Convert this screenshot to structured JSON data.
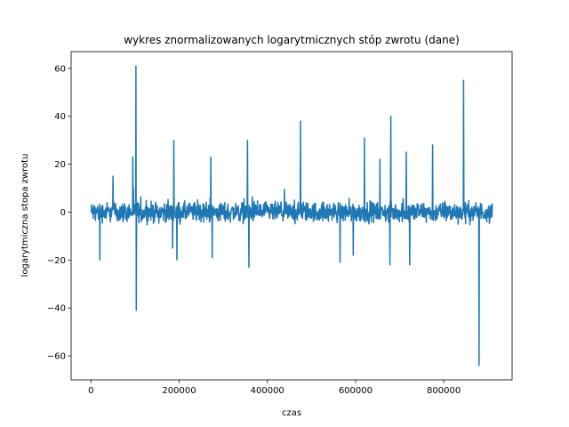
{
  "chart_data": {
    "type": "line",
    "title": "wykres znormalizowanych logarytmicznych stóp zwrotu (dane)",
    "xlabel": "czas",
    "ylabel": "logarytmiczna stopa zwrotu",
    "xlim": [
      -45000,
      955000
    ],
    "ylim": [
      -70,
      67
    ],
    "xticks": [
      0,
      200000,
      400000,
      600000,
      800000
    ],
    "xtick_labels": [
      "0",
      "200000",
      "400000",
      "600000",
      "800000"
    ],
    "yticks": [
      -60,
      -40,
      -20,
      0,
      20,
      40,
      60
    ],
    "ytick_labels": [
      "−60",
      "−40",
      "−20",
      "0",
      "20",
      "40",
      "60"
    ],
    "series": [
      {
        "name": "dane",
        "color": "#1f77b4",
        "x_range": [
          0,
          910000
        ],
        "band": {
          "x": [
            0,
            910000
          ],
          "low": -6,
          "high": 6
        },
        "spikes": [
          {
            "x": 20000,
            "value": -20
          },
          {
            "x": 50000,
            "value": 15
          },
          {
            "x": 95000,
            "value": 23
          },
          {
            "x": 102000,
            "value": 61
          },
          {
            "x": 103000,
            "value": -41
          },
          {
            "x": 185000,
            "value": -15
          },
          {
            "x": 188000,
            "value": 30
          },
          {
            "x": 195000,
            "value": -20
          },
          {
            "x": 272000,
            "value": 23
          },
          {
            "x": 275000,
            "value": -19
          },
          {
            "x": 355000,
            "value": 30
          },
          {
            "x": 358000,
            "value": -23
          },
          {
            "x": 475000,
            "value": 38
          },
          {
            "x": 565000,
            "value": -21
          },
          {
            "x": 595000,
            "value": -18
          },
          {
            "x": 620000,
            "value": 31
          },
          {
            "x": 655000,
            "value": 22
          },
          {
            "x": 680000,
            "value": 40
          },
          {
            "x": 678000,
            "value": -22
          },
          {
            "x": 715000,
            "value": 25
          },
          {
            "x": 723000,
            "value": -22
          },
          {
            "x": 775000,
            "value": 28
          },
          {
            "x": 845000,
            "value": 55
          },
          {
            "x": 880000,
            "value": -64
          }
        ]
      }
    ]
  }
}
